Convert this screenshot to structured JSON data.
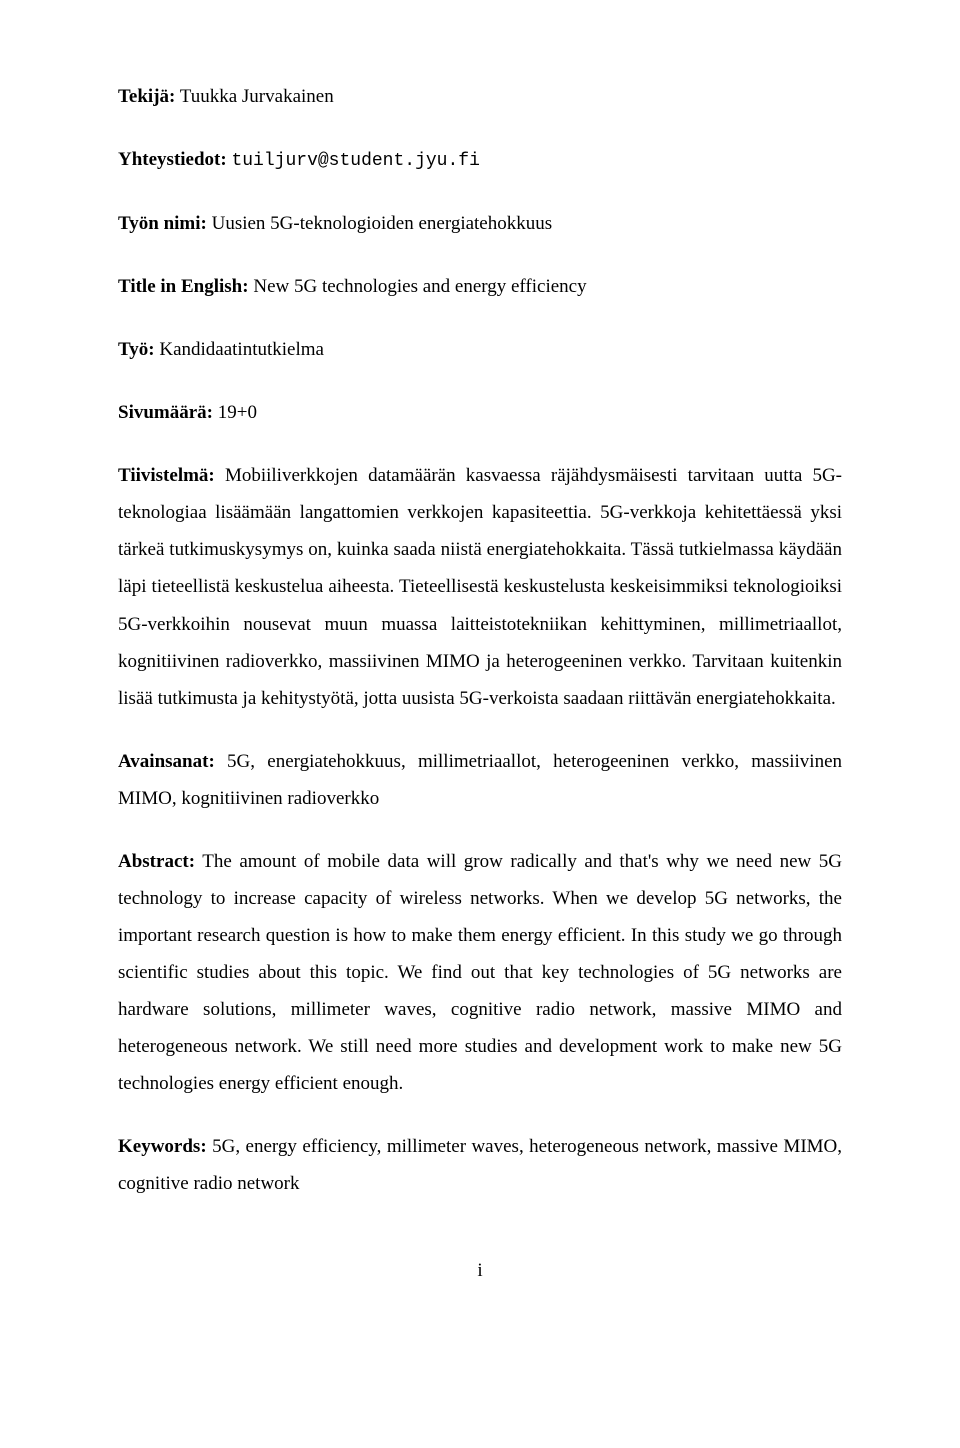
{
  "author": {
    "label": "Tekijä:",
    "value": "Tuukka Jurvakainen"
  },
  "contact": {
    "label": "Yhteystiedot:",
    "value": "tuiljurv@student.jyu.fi"
  },
  "work_title": {
    "label": "Työn nimi:",
    "value": "Uusien 5G-teknologioiden energiatehokkuus"
  },
  "title_en": {
    "label": "Title in English:",
    "value": "New 5G technologies and energy efficiency"
  },
  "work_type": {
    "label": "Työ:",
    "value": "Kandidaatintutkielma"
  },
  "pages": {
    "label": "Sivumäärä:",
    "value": "19+0"
  },
  "tiivistelma": {
    "label": "Tiivistelmä:",
    "value": "Mobiiliverkkojen datamäärän kasvaessa räjähdysmäisesti tarvitaan uutta 5G-teknologiaa lisäämään langattomien verkkojen kapasiteettia. 5G-verkkoja kehitettäessä yksi tärkeä tutkimuskysymys on, kuinka saada niistä energiatehokkaita. Tässä tutkielmassa käydään läpi tieteellistä keskustelua aiheesta. Tieteellisestä keskustelusta keskeisimmiksi teknologioiksi 5G-verkkoihin nousevat muun muassa laitteistotekniikan kehittyminen, millimetriaallot, kognitiivinen radioverkko, massiivinen MIMO ja heterogeeninen verkko. Tarvitaan kuitenkin lisää tutkimusta ja kehitystyötä, jotta uusista 5G-verkoista saadaan riittävän energiatehokkaita."
  },
  "avainsanat": {
    "label": "Avainsanat:",
    "value": "5G, energiatehokkuus, millimetriaallot, heterogeeninen verkko, massiivinen MIMO, kognitiivinen radioverkko"
  },
  "abstract": {
    "label": "Abstract:",
    "value": "The amount of mobile data will grow radically and that's why we need new 5G technology to increase capacity of wireless networks. When we develop 5G networks, the important research question is how to make them energy efficient. In this study we go through scientific studies about this topic. We find out that key technologies of 5G networks are hardware solutions, millimeter waves, cognitive radio network, massive MIMO and heterogeneous network. We still need more studies and development work to make new 5G technologies energy efficient enough."
  },
  "keywords": {
    "label": "Keywords:",
    "value": "5G, energy efficiency, millimeter waves, heterogeneous network, massive MIMO, cognitive radio network"
  },
  "page_number": "i"
}
